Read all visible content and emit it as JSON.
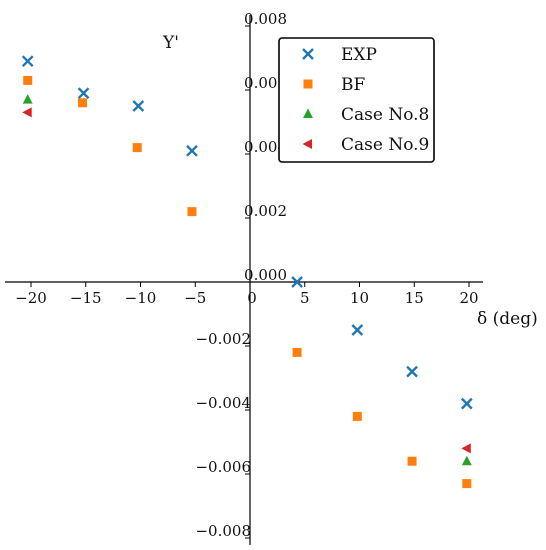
{
  "chart_data": {
    "type": "scatter",
    "title": "",
    "xlabel": "δ (deg)",
    "ylabel": "Y'",
    "xlim": [
      -22.5,
      21.3
    ],
    "ylim": [
      -0.0083,
      0.0083
    ],
    "x_ticks": [
      {
        "value": -20,
        "label": "−20"
      },
      {
        "value": -15,
        "label": "−15"
      },
      {
        "value": -10,
        "label": "−10"
      },
      {
        "value": -5,
        "label": "−5"
      },
      {
        "value": 0,
        "label": "0"
      },
      {
        "value": 5,
        "label": "5"
      },
      {
        "value": 10,
        "label": "10"
      },
      {
        "value": 15,
        "label": "15"
      },
      {
        "value": 20,
        "label": "20"
      }
    ],
    "y_ticks": [
      {
        "value": 0.008,
        "label": "0.008"
      },
      {
        "value": 0.006,
        "label": "0.006"
      },
      {
        "value": 0.004,
        "label": "0.004"
      },
      {
        "value": 0.002,
        "label": "0.002"
      },
      {
        "value": 0.0,
        "label": "0.000"
      },
      {
        "value": -0.002,
        "label": "−0.002"
      },
      {
        "value": -0.004,
        "label": "−0.004"
      },
      {
        "value": -0.006,
        "label": "−0.006"
      },
      {
        "value": -0.008,
        "label": "−0.008"
      }
    ],
    "grid": false,
    "legend_position": "top-right",
    "series": [
      {
        "name": "EXP",
        "marker": "x",
        "color": "#1f77b4",
        "x": [
          -20.3,
          -15.2,
          -10.2,
          -5.3,
          4.3,
          9.8,
          14.8,
          19.8
        ],
        "y": [
          0.0069,
          0.0059,
          0.0055,
          0.0041,
          0.0,
          -0.0015,
          -0.0028,
          -0.0038
        ]
      },
      {
        "name": "BF",
        "marker": "square",
        "color": "#ff7f0e",
        "x": [
          -20.3,
          -15.3,
          -10.3,
          -5.3,
          4.3,
          9.8,
          14.8,
          19.8
        ],
        "y": [
          0.0063,
          0.0056,
          0.0042,
          0.0022,
          -0.0022,
          -0.0042,
          -0.0056,
          -0.0063
        ]
      },
      {
        "name": "Case No.8",
        "marker": "triangle-up",
        "color": "#2ca02c",
        "x": [
          -20.3,
          19.8
        ],
        "y": [
          0.0057,
          -0.0056
        ]
      },
      {
        "name": "Case No.9",
        "marker": "triangle-left",
        "color": "#d62728",
        "x": [
          -20.3,
          19.8
        ],
        "y": [
          0.0053,
          -0.0052
        ]
      }
    ]
  }
}
